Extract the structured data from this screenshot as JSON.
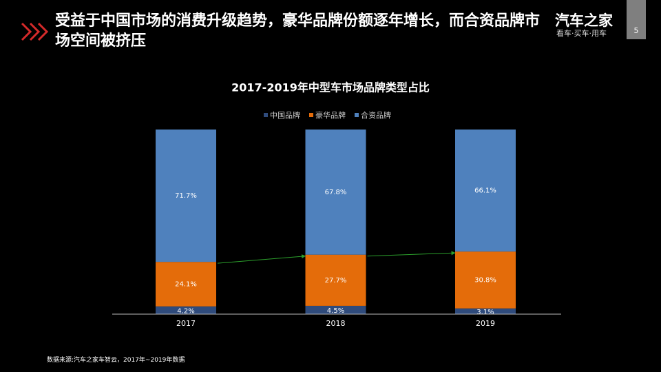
{
  "header": {
    "title": "受益于中国市场的消费升级趋势，豪华品牌份额逐年增长，而合资品牌市场空间被挤压"
  },
  "logo": {
    "name": "汽车之家",
    "slogan": "看车·买车·用车"
  },
  "page_number": 5,
  "chart_data": {
    "type": "stacked_bar",
    "title": "2017-2019年中型车市场品牌类型占比",
    "categories": [
      "2017",
      "2018",
      "2019"
    ],
    "series": [
      {
        "name": "中国品牌",
        "color": "#2f4b7c",
        "values": [
          4.2,
          4.5,
          3.1
        ],
        "value_labels": [
          "4.2%",
          "4.5%",
          "3.1%"
        ]
      },
      {
        "name": "豪华品牌",
        "color": "#e46c0a",
        "values": [
          24.1,
          27.7,
          30.8
        ],
        "value_labels": [
          "24.1%",
          "27.7%",
          "30.8%"
        ]
      },
      {
        "name": "合资品牌",
        "color": "#4f81bd",
        "values": [
          71.7,
          67.8,
          66.1
        ],
        "value_labels": [
          "71.7%",
          "67.8%",
          "66.1%"
        ]
      }
    ]
  },
  "footnote": "数据来源:汽车之家车智云，2017年~2019年数据"
}
